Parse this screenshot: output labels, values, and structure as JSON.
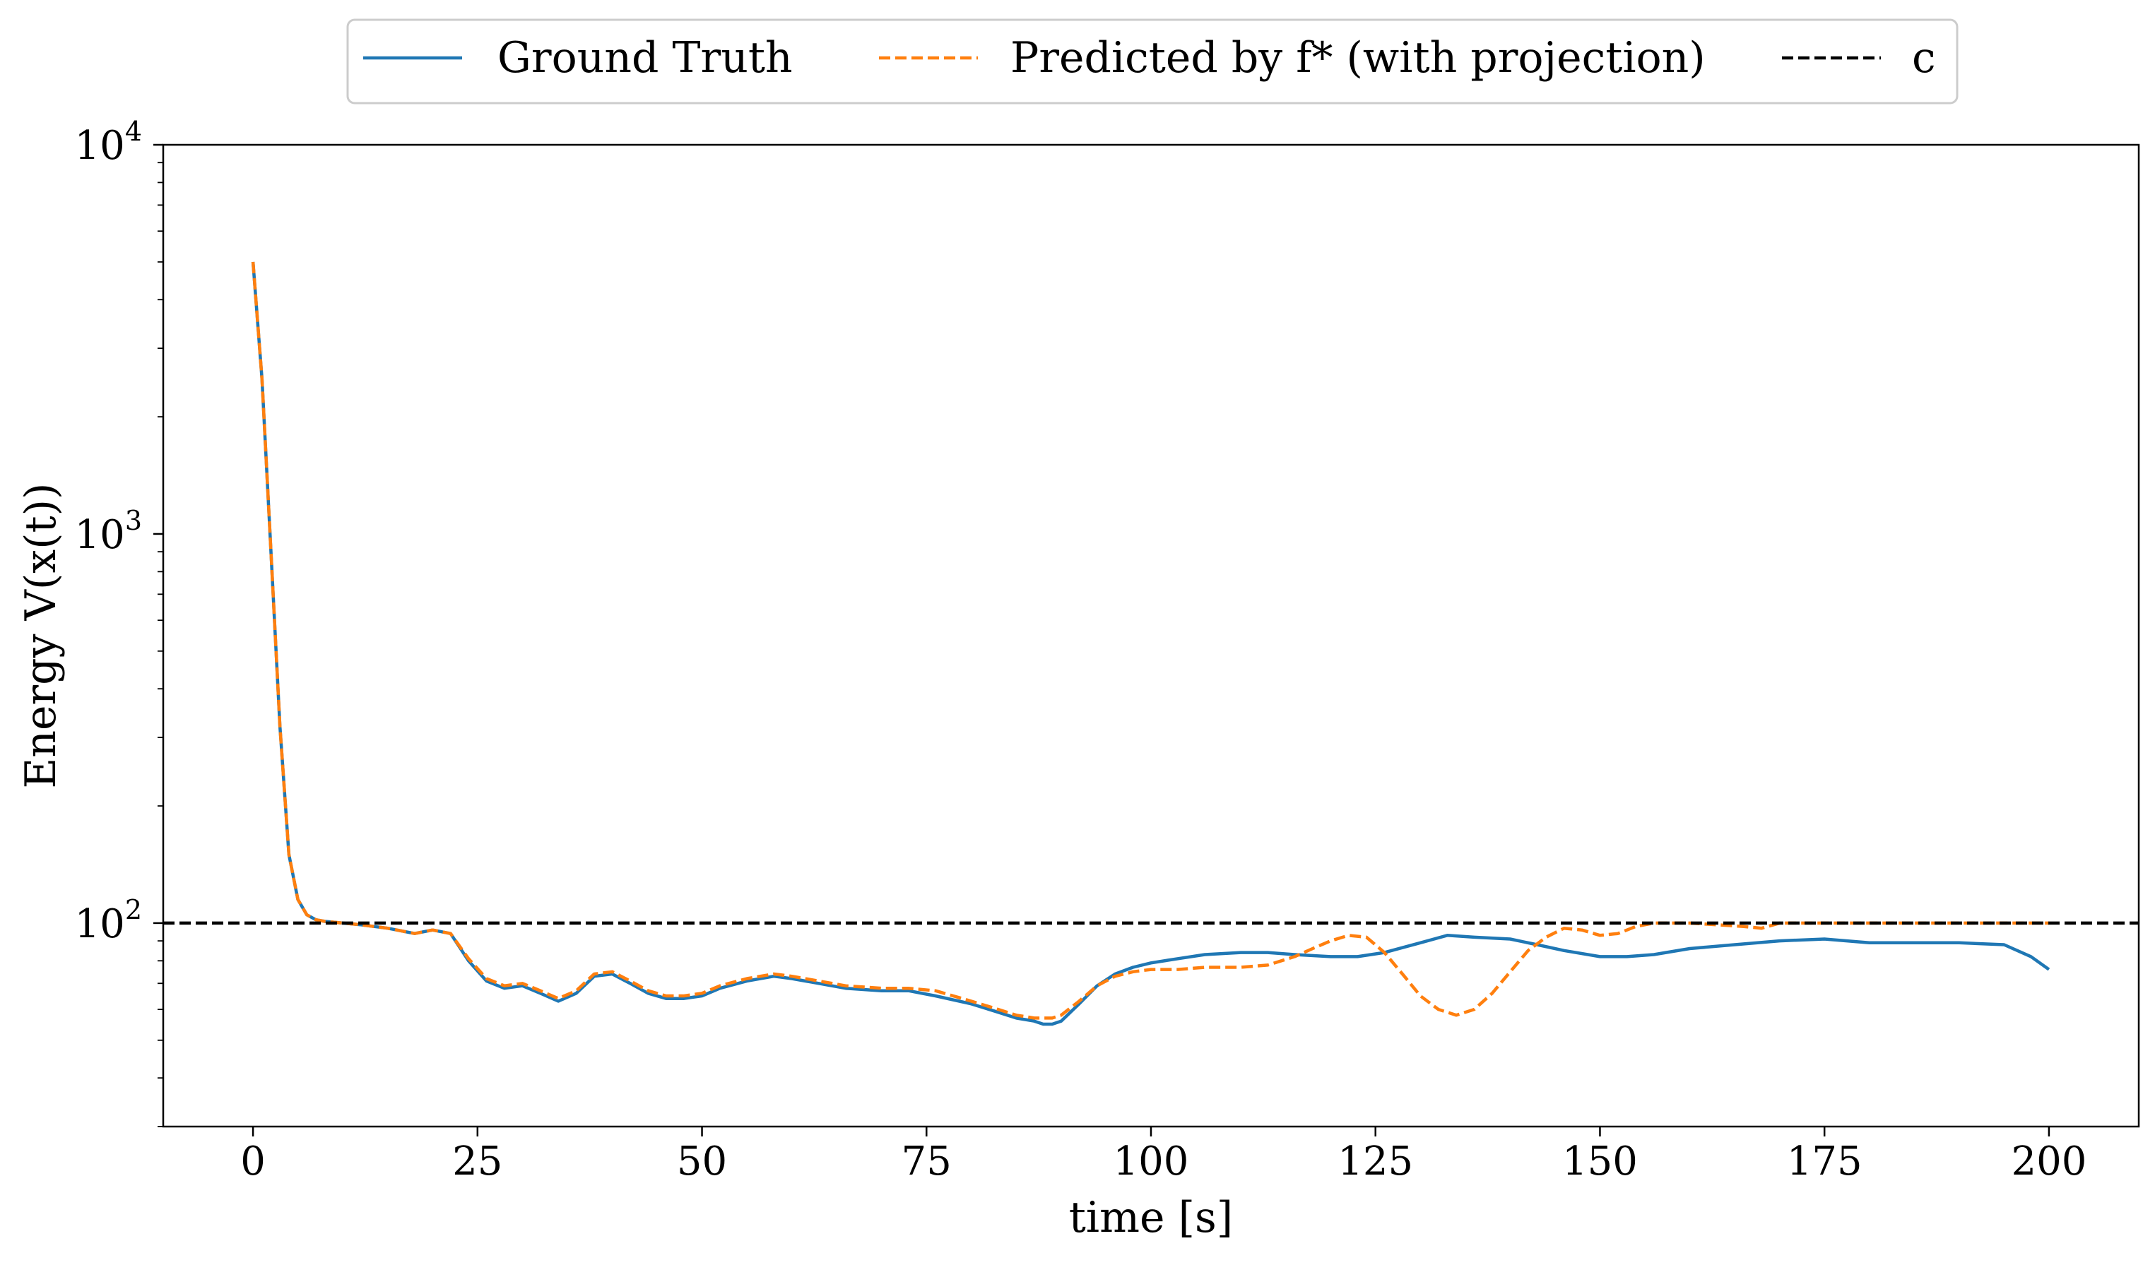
{
  "chart_data": {
    "type": "line",
    "xlabel": "time [s]",
    "ylabel": "Energy V(x(t))",
    "xlim": [
      -10,
      210
    ],
    "ylim": [
      30,
      10000
    ],
    "yscale": "log",
    "xticks": [
      0,
      25,
      50,
      75,
      100,
      125,
      150,
      175,
      200
    ],
    "yticks": [
      {
        "value": 100,
        "base": "10",
        "exp": "2"
      },
      {
        "value": 1000,
        "base": "10",
        "exp": "3"
      },
      {
        "value": 10000,
        "base": "10",
        "exp": "4"
      }
    ],
    "grid": false,
    "legend": {
      "location": "top-center, outside plot area",
      "entries": [
        {
          "label": "Ground Truth",
          "style": "solid",
          "color": "#1f77b4"
        },
        {
          "label": "Predicted by f* (with projection)",
          "style": "dashed",
          "color": "#ff7f0e"
        },
        {
          "label": "c",
          "style": "dashed",
          "color": "#000000"
        }
      ]
    },
    "series": [
      {
        "name": "Ground Truth",
        "color": "#1f77b4",
        "style": "solid",
        "x": [
          0,
          1,
          2,
          3,
          4,
          5,
          6,
          7,
          8,
          10,
          12,
          15,
          18,
          20,
          22,
          24,
          26,
          28,
          30,
          32,
          34,
          36,
          38,
          40,
          42,
          44,
          46,
          48,
          50,
          52,
          55,
          58,
          60,
          63,
          66,
          70,
          73,
          76,
          80,
          83,
          85,
          87,
          88,
          89,
          90,
          92,
          94,
          96,
          98,
          100,
          103,
          106,
          110,
          113,
          116,
          120,
          123,
          126,
          130,
          133,
          136,
          140,
          143,
          146,
          150,
          153,
          156,
          160,
          165,
          170,
          175,
          180,
          185,
          190,
          195,
          198,
          200
        ],
        "y": [
          5000,
          2500,
          900,
          320,
          150,
          115,
          105,
          102,
          101,
          100,
          99,
          97,
          94,
          96,
          94,
          80,
          71,
          68,
          69,
          66,
          63,
          66,
          73,
          74,
          70,
          66,
          64,
          64,
          65,
          68,
          71,
          73,
          72,
          70,
          68,
          67,
          67,
          65,
          62,
          59,
          57,
          56,
          55,
          55,
          56,
          62,
          69,
          74,
          77,
          79,
          81,
          83,
          84,
          84,
          83,
          82,
          82,
          84,
          89,
          93,
          92,
          91,
          88,
          85,
          82,
          82,
          83,
          86,
          88,
          90,
          91,
          89,
          89,
          89,
          88,
          82,
          76
        ]
      },
      {
        "name": "Predicted by f* (with projection)",
        "color": "#ff7f0e",
        "style": "dashed",
        "x": [
          0,
          1,
          2,
          3,
          4,
          5,
          6,
          7,
          8,
          10,
          12,
          15,
          18,
          20,
          22,
          24,
          26,
          28,
          30,
          32,
          34,
          36,
          38,
          40,
          42,
          44,
          46,
          48,
          50,
          52,
          55,
          58,
          60,
          63,
          66,
          70,
          73,
          76,
          80,
          83,
          85,
          87,
          88,
          89,
          90,
          92,
          94,
          96,
          98,
          100,
          103,
          106,
          110,
          113,
          116,
          118,
          120,
          122,
          124,
          126,
          128,
          130,
          132,
          134,
          136,
          138,
          140,
          142,
          144,
          146,
          148,
          150,
          152,
          154,
          156,
          158,
          160,
          163,
          166,
          168,
          170,
          175,
          180,
          185,
          190,
          195,
          200
        ],
        "y": [
          5000,
          2500,
          900,
          320,
          150,
          115,
          105,
          102,
          101,
          100,
          99,
          97,
          94,
          96,
          94,
          81,
          72,
          69,
          70,
          67,
          64,
          67,
          74,
          75,
          71,
          67,
          65,
          65,
          66,
          69,
          72,
          74,
          73,
          71,
          69,
          68,
          68,
          67,
          63,
          60,
          58,
          57,
          57,
          57,
          58,
          63,
          69,
          73,
          75,
          76,
          76,
          77,
          77,
          78,
          82,
          86,
          90,
          93,
          92,
          84,
          74,
          65,
          60,
          58,
          60,
          66,
          75,
          85,
          92,
          97,
          96,
          93,
          94,
          98,
          100,
          100,
          100,
          99,
          98,
          97,
          100,
          100,
          100,
          100,
          100,
          100,
          100
        ]
      },
      {
        "name": "c",
        "color": "#000000",
        "style": "dashed",
        "x": [
          -10,
          210
        ],
        "y": [
          100,
          100
        ]
      }
    ]
  }
}
